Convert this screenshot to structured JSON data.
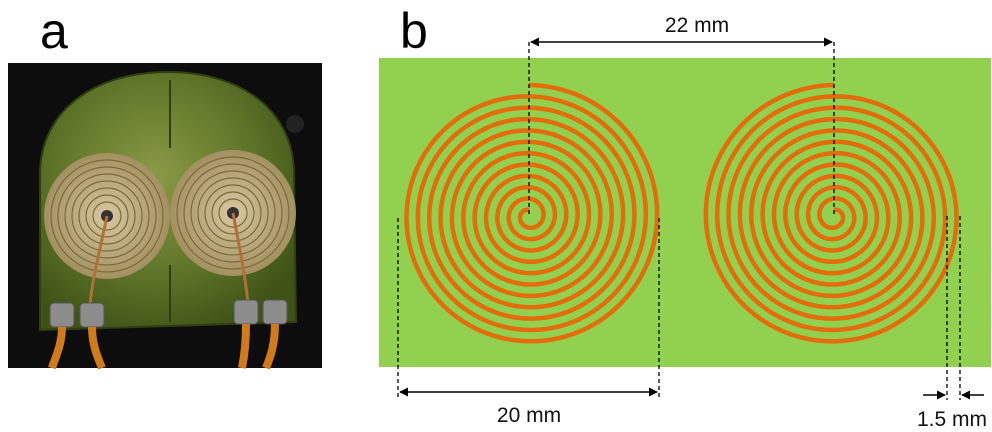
{
  "panel_a": {
    "label": "a"
  },
  "panel_b": {
    "label": "b",
    "dimensions": {
      "center_distance": "22 mm",
      "coil_diameter": "20 mm",
      "track_pitch": "1.5 mm"
    }
  },
  "colors": {
    "substrate": "#92d050",
    "trace": "#e46c0a",
    "photo_board": "#4f6b22",
    "photo_background": "#0d0d0d"
  }
}
